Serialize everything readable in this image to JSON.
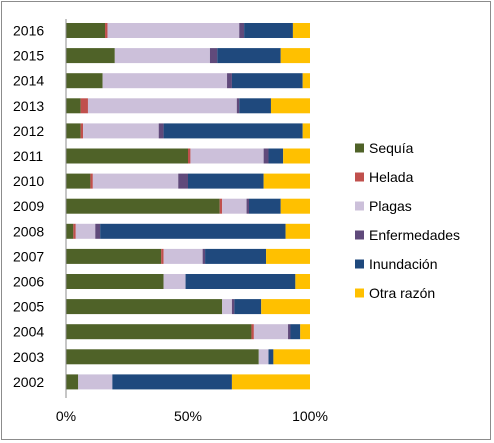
{
  "chart_data": {
    "type": "bar",
    "orientation": "horizontal",
    "stacked": true,
    "title": "",
    "xlabel": "",
    "ylabel": "",
    "xlim": [
      0,
      100
    ],
    "x_ticks": [
      "0%",
      "50%",
      "100%"
    ],
    "grid": false,
    "legend_position": "right",
    "categories": [
      "2016",
      "2015",
      "2014",
      "2013",
      "2012",
      "2011",
      "2010",
      "2009",
      "2008",
      "2007",
      "2006",
      "2005",
      "2004",
      "2003",
      "2002"
    ],
    "series": [
      {
        "name": "Sequía",
        "color": "#4f6228",
        "values": [
          16,
          20,
          15,
          6,
          6,
          50,
          10,
          63,
          3,
          39,
          40,
          64,
          76,
          79,
          5
        ]
      },
      {
        "name": "Helada",
        "color": "#c0504d",
        "values": [
          1,
          0,
          0,
          3,
          1,
          1,
          1,
          1,
          1,
          1,
          0,
          0,
          1,
          0,
          0
        ]
      },
      {
        "name": "Plagas",
        "color": "#ccc0da",
        "values": [
          54,
          39,
          51,
          61,
          31,
          30,
          35,
          10,
          8,
          16,
          9,
          4,
          14,
          4,
          14
        ]
      },
      {
        "name": "Enfermedades",
        "color": "#604a7b",
        "values": [
          2,
          3,
          2,
          1,
          2,
          2,
          4,
          1,
          2,
          1,
          0,
          1,
          1,
          0,
          0
        ]
      },
      {
        "name": "Inundación",
        "color": "#1f497d",
        "values": [
          20,
          26,
          29,
          13,
          57,
          6,
          31,
          13,
          76,
          25,
          45,
          11,
          4,
          2,
          49
        ]
      },
      {
        "name": "Otra razón",
        "color": "#ffc000",
        "values": [
          7,
          12,
          3,
          16,
          3,
          11,
          19,
          12,
          10,
          18,
          6,
          20,
          4,
          15,
          32
        ]
      }
    ]
  }
}
